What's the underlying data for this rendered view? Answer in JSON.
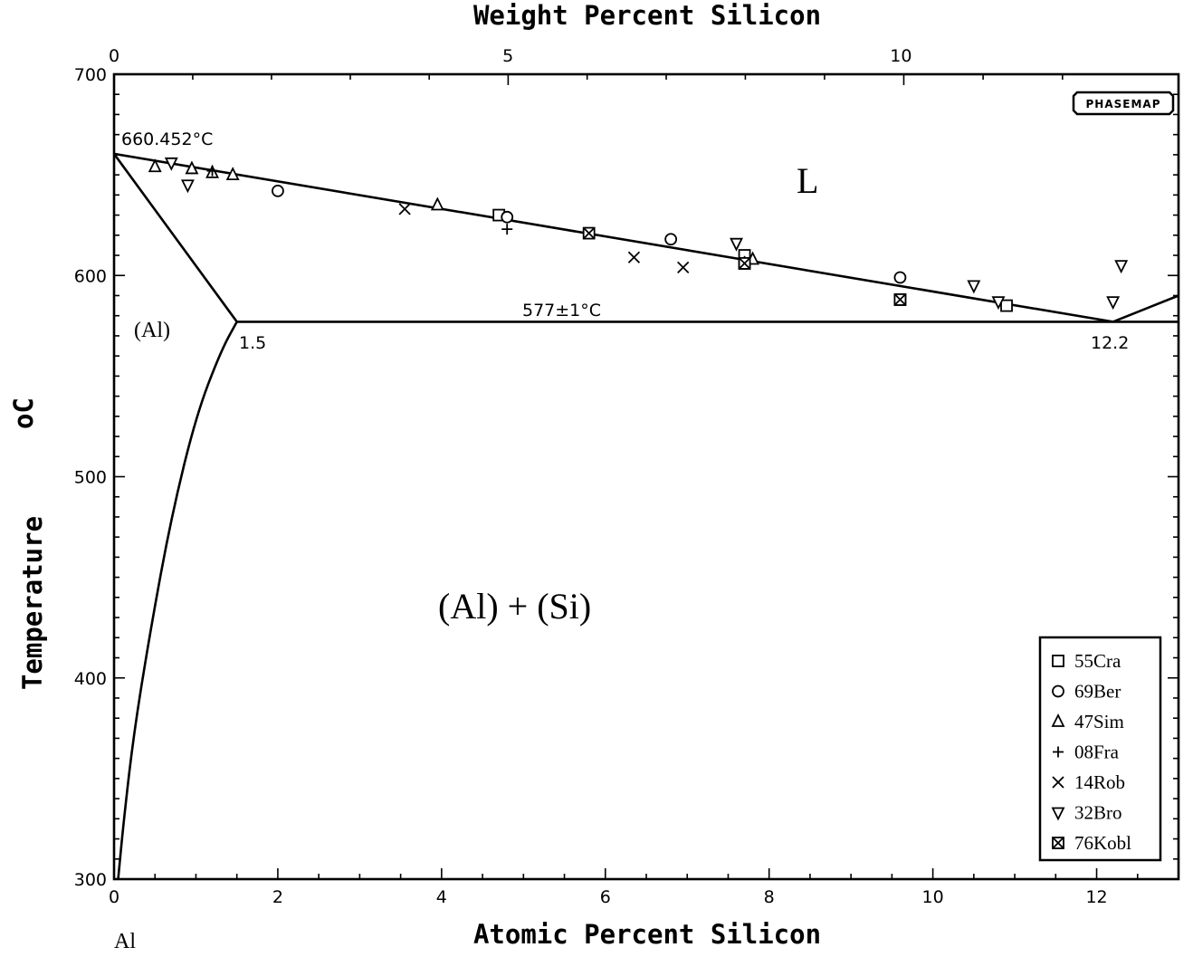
{
  "chart_data": {
    "type": "scatter",
    "title": "",
    "top_axis_label": "Weight Percent Silicon",
    "xlabel": "Atomic Percent Silicon",
    "ylabel": "Temperature",
    "ylabel_unit": "oC",
    "element_label": "Al",
    "xlim": [
      0,
      13
    ],
    "ylim": [
      300,
      700
    ],
    "x_ticks": [
      "0",
      "2",
      "4",
      "6",
      "8",
      "10",
      "12"
    ],
    "y_ticks": [
      "300",
      "400",
      "500",
      "600",
      "700"
    ],
    "top_ticks": [
      {
        "label": "0",
        "at": 0
      },
      {
        "label": "5",
        "at": 4.81
      },
      {
        "label": "10",
        "at": 9.61
      }
    ],
    "logo": "PHASEMAP",
    "phase_labels": {
      "liquid": "L",
      "al_solid": "(Al)",
      "two_phase": "(Al) + (Si)"
    },
    "annotations": {
      "melting_point": "660.452°C",
      "eutectic_temp": "577±1°C",
      "solubility_limit": "1.5",
      "eutectic_comp": "12.2"
    },
    "lines": {
      "liquidus": [
        [
          0,
          660.452
        ],
        [
          12.2,
          577
        ]
      ],
      "liquidus_si": [
        [
          12.2,
          577
        ],
        [
          13,
          590
        ]
      ],
      "eutectic": [
        [
          1.5,
          577
        ],
        [
          13,
          577
        ]
      ],
      "solidus": [
        [
          0,
          660.452
        ],
        [
          1.5,
          577
        ]
      ],
      "solvus": [
        [
          1.5,
          577
        ],
        [
          1.3,
          562
        ],
        [
          1.0,
          530
        ],
        [
          0.7,
          480
        ],
        [
          0.45,
          425
        ],
        [
          0.25,
          375
        ],
        [
          0.12,
          330
        ],
        [
          0.05,
          300
        ]
      ]
    },
    "series": [
      {
        "name": "55Cra",
        "marker": "square",
        "points": [
          [
            4.7,
            630
          ],
          [
            7.7,
            610
          ],
          [
            7.7,
            606
          ],
          [
            10.9,
            585
          ],
          [
            9.6,
            588
          ]
        ]
      },
      {
        "name": "69Ber",
        "marker": "circle",
        "points": [
          [
            2.0,
            642
          ],
          [
            4.8,
            629
          ],
          [
            6.8,
            618
          ],
          [
            9.6,
            599
          ]
        ]
      },
      {
        "name": "47Sim",
        "marker": "triangle",
        "points": [
          [
            0.5,
            654
          ],
          [
            0.95,
            653
          ],
          [
            1.2,
            651
          ],
          [
            1.45,
            650
          ],
          [
            3.95,
            635
          ],
          [
            7.8,
            608
          ]
        ]
      },
      {
        "name": "08Fra",
        "marker": "plus",
        "points": [
          [
            4.8,
            623
          ],
          [
            1.2,
            652
          ],
          [
            7.7,
            607
          ]
        ]
      },
      {
        "name": "14Rob",
        "marker": "cross",
        "points": [
          [
            3.55,
            633
          ],
          [
            6.35,
            609
          ],
          [
            6.95,
            604
          ]
        ]
      },
      {
        "name": "32Bro",
        "marker": "triangle-down",
        "points": [
          [
            0.7,
            656
          ],
          [
            0.9,
            645
          ],
          [
            7.6,
            616
          ],
          [
            10.5,
            595
          ],
          [
            10.8,
            587
          ],
          [
            12.2,
            587
          ],
          [
            12.3,
            605
          ]
        ]
      },
      {
        "name": "76Kobl",
        "marker": "crossed-square",
        "points": [
          [
            5.8,
            621
          ],
          [
            7.7,
            606
          ],
          [
            9.6,
            588
          ]
        ]
      }
    ],
    "legend_position": "bottom-right"
  }
}
